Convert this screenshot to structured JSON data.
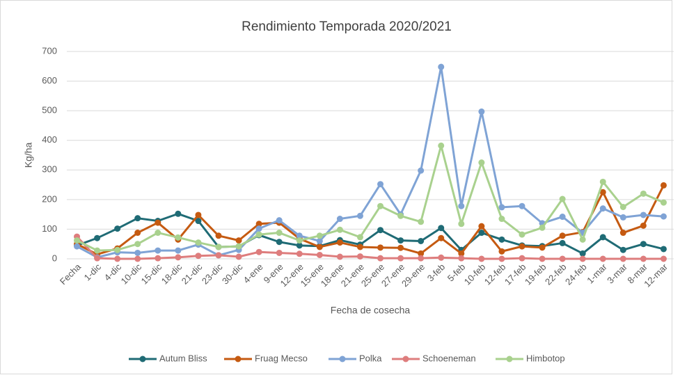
{
  "chart_data": {
    "type": "line",
    "title": "Rendimiento Temporada 2020/2021",
    "x_label": "Fecha de cosecha",
    "y_label": "Kg/ha",
    "categories": [
      "Fecha",
      "1-dic",
      "4-dic",
      "10-dic",
      "15-dic",
      "18-dic",
      "21-dic",
      "23-dic",
      "30-dic",
      "4-ene",
      "9-ene",
      "12-ene",
      "15-ene",
      "18-ene",
      "21-ene",
      "25-ene",
      "27-ene",
      "29-ene",
      "3-feb",
      "5-feb",
      "10-feb",
      "12-feb",
      "17-feb",
      "19-feb",
      "22-feb",
      "24-feb",
      "1-mar",
      "3-mar",
      "8-mar",
      "12-mar"
    ],
    "series": [
      {
        "name": "Autum Bliss",
        "color": "#1f6b75",
        "values": [
          45,
          70,
          102,
          137,
          128,
          152,
          128,
          40,
          42,
          80,
          57,
          45,
          43,
          63,
          48,
          97,
          62,
          60,
          104,
          30,
          88,
          65,
          45,
          43,
          53,
          18,
          73,
          30,
          50,
          33
        ]
      },
      {
        "name": "Fruag Mecso",
        "color": "#c55a11",
        "values": [
          50,
          15,
          35,
          88,
          122,
          65,
          148,
          78,
          62,
          118,
          122,
          68,
          40,
          55,
          40,
          38,
          37,
          18,
          70,
          18,
          110,
          25,
          42,
          38,
          78,
          90,
          225,
          88,
          112,
          248
        ]
      },
      {
        "name": "Polka",
        "color": "#7fa3d5",
        "values": [
          42,
          5,
          22,
          20,
          28,
          28,
          48,
          12,
          30,
          102,
          130,
          78,
          60,
          135,
          145,
          252,
          150,
          298,
          648,
          178,
          497,
          174,
          178,
          120,
          142,
          88,
          170,
          140,
          148,
          143
        ]
      },
      {
        "name": "Schoeneman",
        "color": "#de7d7d",
        "values": [
          75,
          2,
          0,
          0,
          2,
          5,
          10,
          12,
          7,
          23,
          20,
          17,
          13,
          7,
          8,
          2,
          2,
          2,
          4,
          2,
          0,
          0,
          2,
          0,
          0,
          0,
          0,
          0,
          0,
          0
        ]
      },
      {
        "name": "Himbotop",
        "color": "#a9d18e",
        "values": [
          62,
          28,
          30,
          50,
          88,
          72,
          55,
          40,
          42,
          82,
          88,
          62,
          78,
          98,
          73,
          178,
          145,
          125,
          382,
          118,
          325,
          135,
          82,
          105,
          202,
          65,
          260,
          175,
          220,
          190
        ]
      }
    ],
    "ylim": [
      0,
      700
    ],
    "yticks": [
      0,
      100,
      200,
      300,
      400,
      500,
      600,
      700
    ],
    "grid": true,
    "legend": "bottom"
  }
}
